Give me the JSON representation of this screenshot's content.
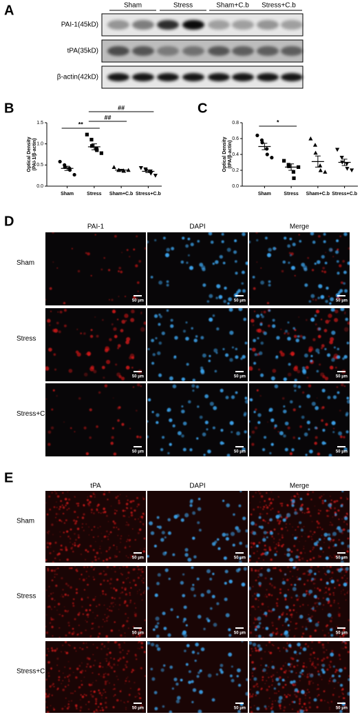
{
  "panel_a": {
    "label": "A",
    "columns": [
      "Sham",
      "Stress",
      "Sham+C.b",
      "Stress+C.b"
    ],
    "rows": [
      "PAI-1(45kD)",
      "tPA(35kD)",
      "β-actin(42kD)"
    ]
  },
  "chart_data": [
    {
      "type": "dot",
      "panel_label": "B",
      "ylabel": [
        "Optical Density",
        "(PAI-1/β-actin)"
      ],
      "categories": [
        "Sham",
        "Stress",
        "Sham+C.b",
        "Stress+C.b"
      ],
      "markers": [
        "circle",
        "square",
        "triangle-up",
        "triangle-down"
      ],
      "color": "#000000",
      "values": [
        [
          0.58,
          0.5,
          0.45,
          0.42,
          0.38,
          0.27
        ],
        [
          1.22,
          1.1,
          0.95,
          0.88,
          0.85,
          0.78
        ],
        [
          0.45,
          0.38,
          0.38,
          0.37,
          0.36,
          0.38
        ],
        [
          0.43,
          0.4,
          0.37,
          0.35,
          0.3,
          0.25
        ]
      ],
      "means": [
        0.42,
        0.93,
        0.38,
        0.35
      ],
      "errors": [
        0.05,
        0.07,
        0.02,
        0.03
      ],
      "ylim": [
        0,
        1.5
      ],
      "yticks": [
        {
          "value": 0,
          "label": "0.0"
        },
        {
          "value": 0.5,
          "label": "0.5"
        },
        {
          "value": 1,
          "label": "1.0"
        },
        {
          "value": 1.5,
          "label": "1.5"
        }
      ],
      "annotations": [
        {
          "text": "**",
          "between": [
            0,
            1
          ]
        },
        {
          "text": "##",
          "between": [
            1,
            2
          ]
        },
        {
          "text": "##",
          "between": [
            1,
            3
          ]
        }
      ]
    },
    {
      "type": "dot",
      "panel_label": "C",
      "ylabel": [
        "Optical Density",
        "(tPA/β-actin)"
      ],
      "categories": [
        "Sham",
        "Stress",
        "Sham+C.b",
        "Stress+C.b"
      ],
      "markers": [
        "circle",
        "square",
        "triangle-up",
        "triangle-down"
      ],
      "color": "#000000",
      "values": [
        [
          0.64,
          0.58,
          0.55,
          0.47,
          0.4,
          0.36
        ],
        [
          0.32,
          0.27,
          0.25,
          0.18,
          0.1,
          0.24
        ],
        [
          0.6,
          0.52,
          0.42,
          0.26,
          0.2,
          0.18
        ],
        [
          0.46,
          0.36,
          0.3,
          0.28,
          0.22,
          0.2
        ]
      ],
      "means": [
        0.5,
        0.24,
        0.31,
        0.3
      ],
      "errors": [
        0.04,
        0.04,
        0.07,
        0.04
      ],
      "ylim": [
        0,
        0.8
      ],
      "yticks": [
        {
          "value": 0,
          "label": "0.0"
        },
        {
          "value": 0.2,
          "label": "0.2"
        },
        {
          "value": 0.4,
          "label": "0.4"
        },
        {
          "value": 0.6,
          "label": "0.6"
        },
        {
          "value": 0.8,
          "label": "0.8"
        }
      ],
      "annotations": [
        {
          "text": "*",
          "between": [
            0,
            1
          ]
        }
      ]
    }
  ],
  "panel_d": {
    "label": "D",
    "columns": [
      "PAI-1",
      "DAPI",
      "Merge"
    ],
    "rows": [
      "Sham",
      "Stress",
      "Stress+C.b"
    ],
    "scale_bar": "50 µm"
  },
  "panel_e": {
    "label": "E",
    "columns": [
      "tPA",
      "DAPI",
      "Merge"
    ],
    "rows": [
      "Sham",
      "Stress",
      "Stress+C.b"
    ],
    "scale_bar": "50 µm"
  }
}
